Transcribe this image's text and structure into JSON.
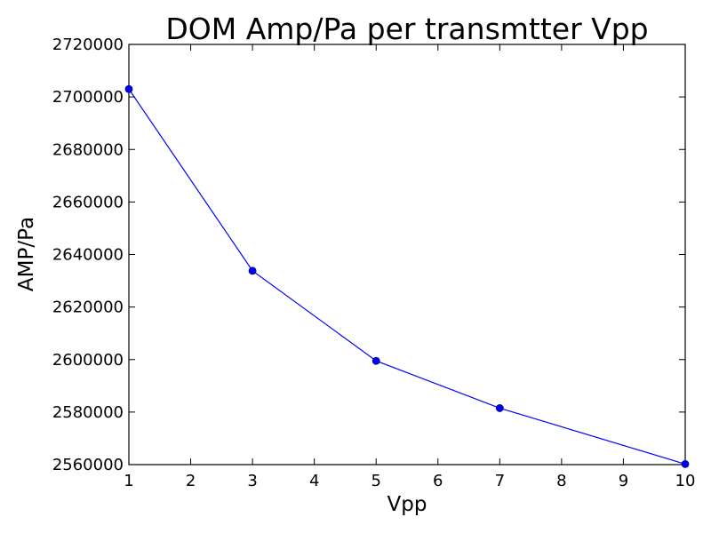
{
  "chart_data": {
    "type": "line",
    "title": "DOM Amp/Pa per transmtter Vpp",
    "xlabel": "Vpp",
    "ylabel": "AMP/Pa",
    "xlim": [
      1,
      10
    ],
    "ylim": [
      2560000,
      2720000
    ],
    "xticks": [
      "1",
      "2",
      "3",
      "4",
      "5",
      "6",
      "7",
      "8",
      "9",
      "10"
    ],
    "yticks": [
      "2560000",
      "2580000",
      "2600000",
      "2620000",
      "2640000",
      "2660000",
      "2680000",
      "2700000",
      "2720000"
    ],
    "grid": false,
    "series": [
      {
        "color": "#0000ff",
        "marker": "circle",
        "x": [
          1,
          3,
          5,
          7,
          10
        ],
        "y": [
          2703000,
          2633800,
          2599500,
          2581500,
          2560200
        ]
      }
    ]
  }
}
